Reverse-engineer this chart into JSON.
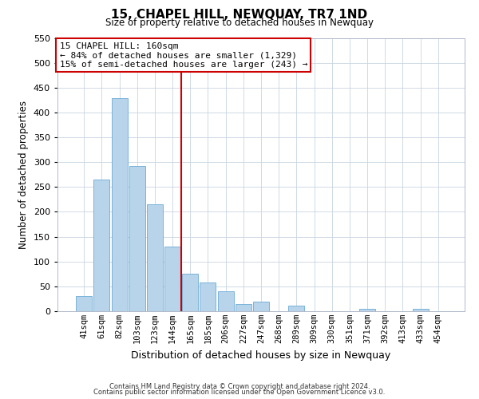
{
  "title": "15, CHAPEL HILL, NEWQUAY, TR7 1ND",
  "subtitle": "Size of property relative to detached houses in Newquay",
  "xlabel": "Distribution of detached houses by size in Newquay",
  "ylabel": "Number of detached properties",
  "bar_labels": [
    "41sqm",
    "61sqm",
    "82sqm",
    "103sqm",
    "123sqm",
    "144sqm",
    "165sqm",
    "185sqm",
    "206sqm",
    "227sqm",
    "247sqm",
    "268sqm",
    "289sqm",
    "309sqm",
    "330sqm",
    "351sqm",
    "371sqm",
    "392sqm",
    "413sqm",
    "433sqm",
    "454sqm"
  ],
  "bar_values": [
    30,
    265,
    428,
    292,
    215,
    130,
    75,
    58,
    40,
    15,
    20,
    0,
    11,
    0,
    0,
    0,
    5,
    0,
    0,
    5,
    0
  ],
  "bar_color": "#b8d4ea",
  "bar_edge_color": "#6aaad4",
  "vline_color": "#cc0000",
  "ylim": [
    0,
    550
  ],
  "yticks": [
    0,
    50,
    100,
    150,
    200,
    250,
    300,
    350,
    400,
    450,
    500,
    550
  ],
  "annotation_title": "15 CHAPEL HILL: 160sqm",
  "annotation_line1": "← 84% of detached houses are smaller (1,329)",
  "annotation_line2": "15% of semi-detached houses are larger (243) →",
  "annotation_box_color": "#ffffff",
  "annotation_box_edge": "#cc0000",
  "footer1": "Contains HM Land Registry data © Crown copyright and database right 2024.",
  "footer2": "Contains public sector information licensed under the Open Government Licence v3.0.",
  "bg_color": "#ffffff",
  "grid_color": "#c8d4e0"
}
